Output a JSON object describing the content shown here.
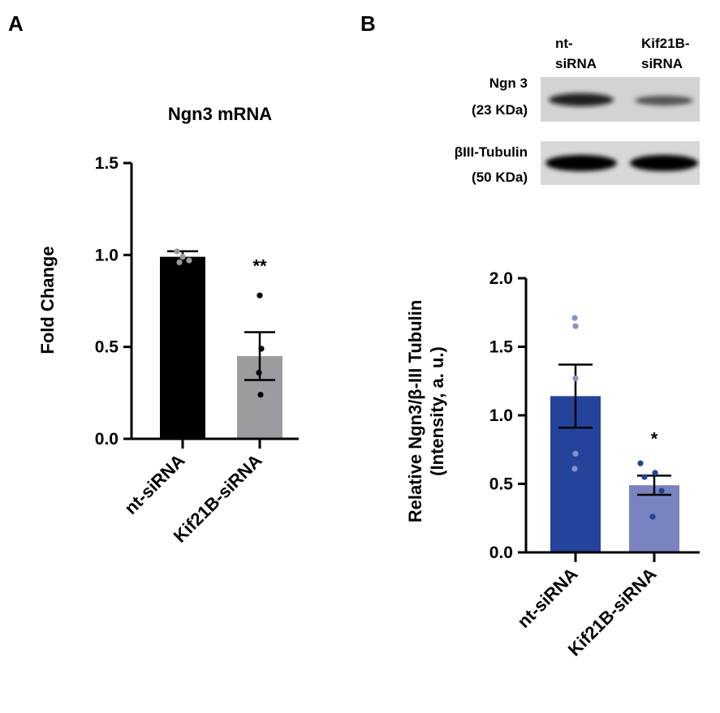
{
  "panels": {
    "a": "A",
    "b": "B"
  },
  "chart_data": [
    {
      "type": "bar",
      "panel": "A",
      "title": "Ngn3 mRNA",
      "xlabel": "",
      "ylabel": "Fold Change",
      "categories": [
        "nt-siRNA",
        "Kif21B-siRNA"
      ],
      "values": [
        0.99,
        0.45
      ],
      "errors": [
        0.03,
        0.13
      ],
      "points": [
        [
          1.02,
          0.99,
          0.97,
          0.96
        ],
        [
          0.78,
          0.49,
          0.36,
          0.24
        ]
      ],
      "bar_colors": [
        "#000000",
        "#9b9ca0"
      ],
      "point_colors": [
        "#9a9a9a",
        "#000000"
      ],
      "significance": [
        "",
        "**"
      ],
      "yticks": [
        "0.0",
        "0.5",
        "1.0",
        "1.5"
      ],
      "ylim": [
        0,
        1.5
      ],
      "grid": false
    },
    {
      "type": "bar",
      "panel": "B",
      "title": "",
      "xlabel": "",
      "ylabel_lines": [
        "Relative Ngn3/β-III Tubulin",
        "(Intensity, a. u.)"
      ],
      "categories": [
        "nt-siRNA",
        "Kif21B-siRNA"
      ],
      "values": [
        1.14,
        0.49
      ],
      "errors": [
        0.23,
        0.07
      ],
      "points": [
        [
          1.71,
          1.65,
          1.27,
          0.72,
          0.61
        ],
        [
          0.65,
          0.58,
          0.55,
          0.45,
          0.26
        ]
      ],
      "bar_colors": [
        "#24439a",
        "#7a82c0"
      ],
      "point_colors": [
        "#8a91c8",
        "#24439a"
      ],
      "significance": [
        "",
        "*"
      ],
      "yticks": [
        "0.0",
        "0.5",
        "1.0",
        "1.5",
        "2.0"
      ],
      "ylim": [
        0,
        2.0
      ],
      "grid": false
    }
  ],
  "western_blot": {
    "lanes": [
      "nt-\nsiRNA",
      "Kif21B-\nsiRNA"
    ],
    "rows": [
      {
        "label": [
          "Ngn 3",
          "(23 KDa)"
        ],
        "intensity": [
          0.85,
          0.6
        ]
      },
      {
        "label": [
          "βIII-Tubulin",
          "(50 KDa)"
        ],
        "intensity": [
          1.0,
          1.0
        ]
      }
    ]
  }
}
